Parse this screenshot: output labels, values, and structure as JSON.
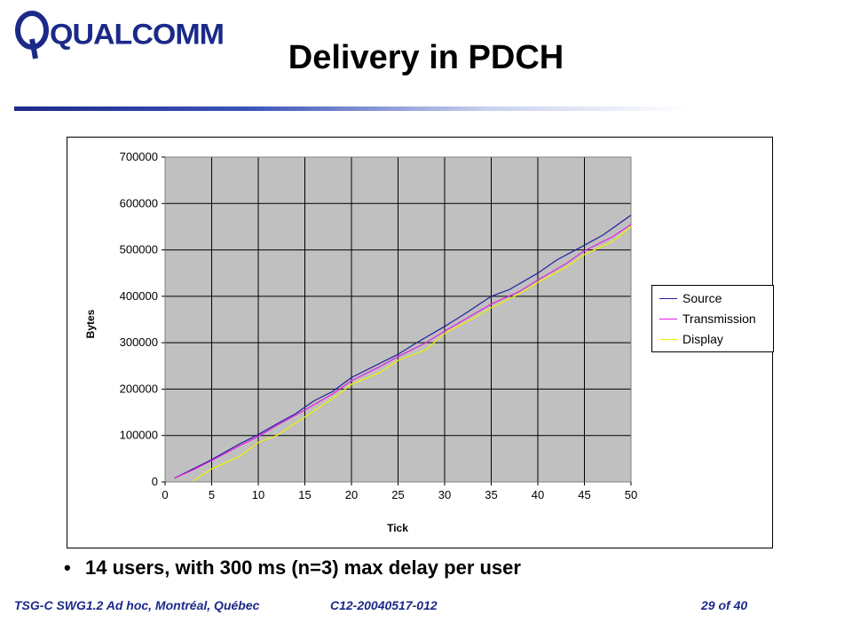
{
  "logo": {
    "text": "QUALCOMM",
    "color": "#1b2a88"
  },
  "slide": {
    "title": "Delivery in PDCH",
    "bullet_marker": "•",
    "bullet": "14 users, with 300 ms (n=3) max delay per user"
  },
  "footer": {
    "left": "TSG-C SWG1.2 Ad hoc, Montréal, Québec",
    "doc": "C12-20040517-012",
    "page": "29 of 40"
  },
  "colors": {
    "accent": "#1b2a88",
    "plot_bg": "#c0c0c0"
  },
  "chart_data": {
    "type": "line",
    "xlabel": "Tick",
    "ylabel": "Bytes",
    "xlim": [
      0,
      50
    ],
    "ylim": [
      0,
      700000
    ],
    "x_ticks": [
      "0",
      "5",
      "10",
      "15",
      "20",
      "25",
      "30",
      "35",
      "40",
      "45",
      "50"
    ],
    "y_ticks": [
      "0",
      "100000",
      "200000",
      "300000",
      "400000",
      "500000",
      "600000",
      "700000"
    ],
    "grid": true,
    "legend_position": "right",
    "series": [
      {
        "name": "Source",
        "color": "#1f1f9e",
        "points": [
          [
            1,
            8000
          ],
          [
            3,
            28000
          ],
          [
            5,
            48000
          ],
          [
            8,
            82000
          ],
          [
            10,
            102000
          ],
          [
            12,
            125000
          ],
          [
            14,
            147000
          ],
          [
            16,
            175000
          ],
          [
            18,
            195000
          ],
          [
            20,
            225000
          ],
          [
            22,
            245000
          ],
          [
            25,
            275000
          ],
          [
            27,
            300000
          ],
          [
            30,
            335000
          ],
          [
            32,
            360000
          ],
          [
            35,
            400000
          ],
          [
            37,
            415000
          ],
          [
            40,
            450000
          ],
          [
            42,
            478000
          ],
          [
            45,
            510000
          ],
          [
            47,
            532000
          ],
          [
            50,
            575000
          ]
        ]
      },
      {
        "name": "Transmission",
        "color": "#e020e0",
        "points": [
          [
            1,
            8000
          ],
          [
            3,
            26000
          ],
          [
            5,
            46000
          ],
          [
            8,
            78000
          ],
          [
            10,
            98000
          ],
          [
            12,
            122000
          ],
          [
            15,
            155000
          ],
          [
            18,
            190000
          ],
          [
            20,
            218000
          ],
          [
            23,
            248000
          ],
          [
            25,
            270000
          ],
          [
            28,
            300000
          ],
          [
            30,
            325000
          ],
          [
            33,
            360000
          ],
          [
            35,
            383000
          ],
          [
            38,
            410000
          ],
          [
            40,
            435000
          ],
          [
            43,
            470000
          ],
          [
            45,
            498000
          ],
          [
            48,
            528000
          ],
          [
            50,
            555000
          ]
        ]
      },
      {
        "name": "Display",
        "color": "#f0f000",
        "points": [
          [
            3,
            2000
          ],
          [
            5,
            28000
          ],
          [
            8,
            55000
          ],
          [
            10,
            85000
          ],
          [
            12,
            100000
          ],
          [
            15,
            140000
          ],
          [
            18,
            180000
          ],
          [
            20,
            210000
          ],
          [
            23,
            235000
          ],
          [
            25,
            262000
          ],
          [
            28,
            285000
          ],
          [
            30,
            320000
          ],
          [
            33,
            352000
          ],
          [
            35,
            375000
          ],
          [
            38,
            405000
          ],
          [
            40,
            430000
          ],
          [
            43,
            462000
          ],
          [
            45,
            490000
          ],
          [
            48,
            518000
          ],
          [
            50,
            550000
          ]
        ]
      }
    ]
  }
}
